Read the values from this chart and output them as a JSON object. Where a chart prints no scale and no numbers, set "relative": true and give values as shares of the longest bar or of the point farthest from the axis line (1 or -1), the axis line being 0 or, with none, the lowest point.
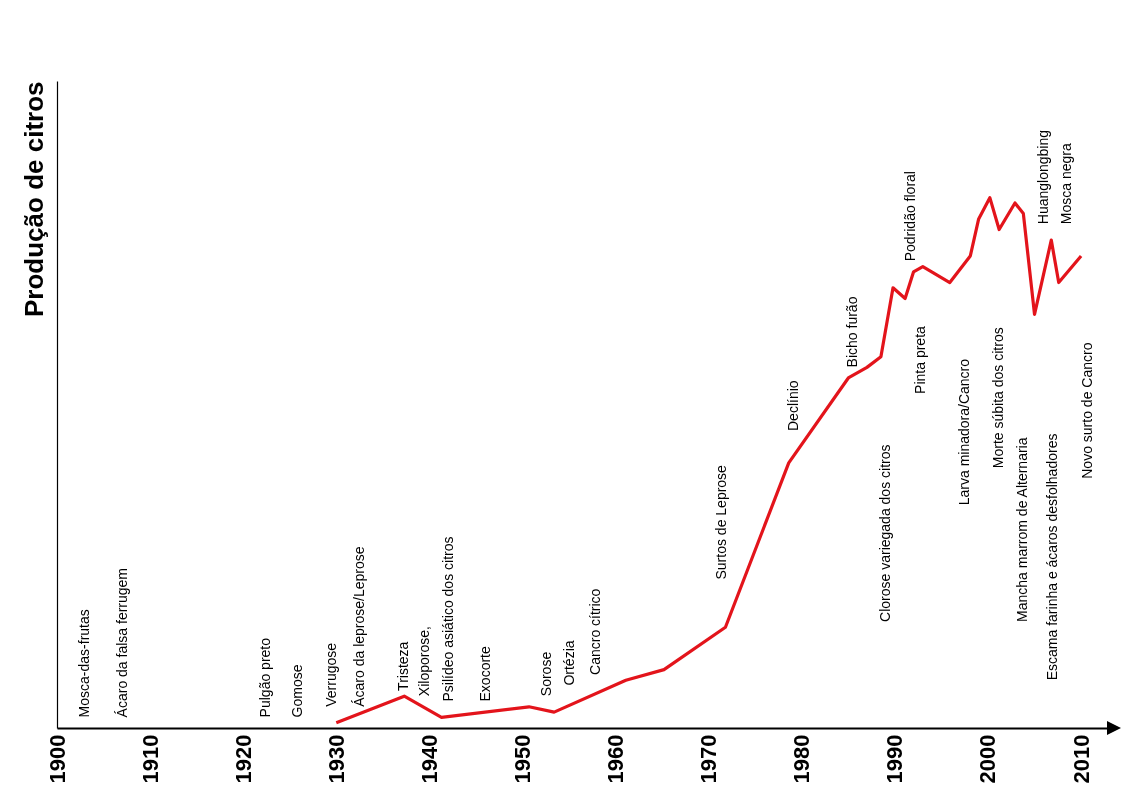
{
  "chart_data": {
    "type": "line",
    "ylabel": "Produção de citros",
    "relative": true,
    "xlim": [
      1900,
      2013
    ],
    "xticks": [
      1900,
      1910,
      1920,
      1930,
      1940,
      1950,
      1960,
      1970,
      1980,
      1990,
      2000,
      2010
    ],
    "x": [
      1930,
      1937.3,
      1941.3,
      1950.7,
      1953.4,
      1961.1,
      1965.2,
      1971.8,
      1978.6,
      1985,
      1987,
      1988.5,
      1989.8,
      1991.1,
      1992,
      1993,
      1995.9,
      1998.1,
      1999,
      2000.2,
      2001.2,
      2002.9,
      2003.8,
      2005,
      2006.8,
      2007.6,
      2010
    ],
    "series": [
      {
        "color": "#e3141b",
        "values": [
          0.01,
          0.06,
          0.02,
          0.04,
          0.03,
          0.09,
          0.11,
          0.19,
          0.5,
          0.66,
          0.68,
          0.7,
          0.83,
          0.81,
          0.86,
          0.87,
          0.84,
          0.89,
          0.96,
          1,
          0.94,
          0.99,
          0.97,
          0.78,
          0.92,
          0.84,
          0.89
        ]
      }
    ],
    "annotations": [
      "Mosca-das-frutas",
      "Ácaro da falsa ferrugem",
      "Pulgão preto",
      "Gomose",
      "Verrugose",
      "Ácaro da leprose/Leprose",
      "Tristeza",
      "Xiloporose,",
      "Psilídeo asiático dos citros",
      "Exocorte",
      "Sorose",
      "Ortézia",
      "Cancro cítrico",
      "Surtos de Leprose",
      "Declínio",
      "Bicho furão",
      "Clorose variegada dos citros",
      "Podridão floral",
      "Pinta preta",
      "Larva minadora/Cancro",
      "Morte súbita dos citros",
      "Mancha marrom de Alternaria",
      "Huanglongbing",
      "Escama farinha e ácaros desfolhadores",
      "Mosca negra",
      "Novo surto de Cancro"
    ]
  }
}
